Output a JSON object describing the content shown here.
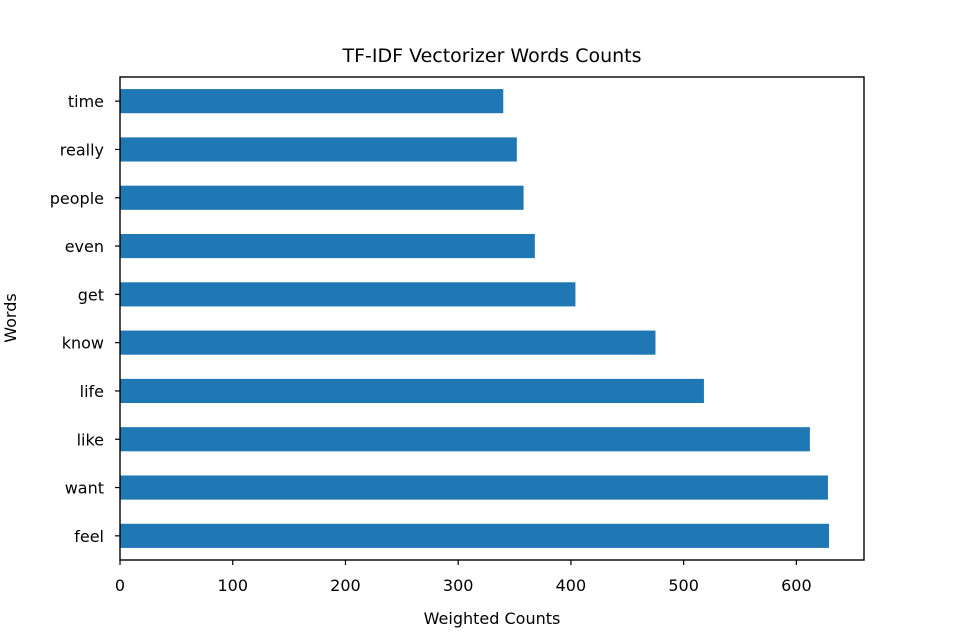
{
  "chart_data": {
    "type": "bar",
    "orientation": "horizontal",
    "title": "TF-IDF Vectorizer Words Counts",
    "xlabel": "Weighted Counts",
    "ylabel": "Words",
    "categories": [
      "feel",
      "want",
      "like",
      "life",
      "know",
      "get",
      "even",
      "people",
      "really",
      "time"
    ],
    "values": [
      629,
      628,
      612,
      518,
      475,
      404,
      368,
      358,
      352,
      340
    ],
    "xlim": [
      0,
      660
    ],
    "xticks": [
      0,
      100,
      200,
      300,
      400,
      500,
      600
    ],
    "grid": false,
    "bar_color": "#1f77b4"
  }
}
